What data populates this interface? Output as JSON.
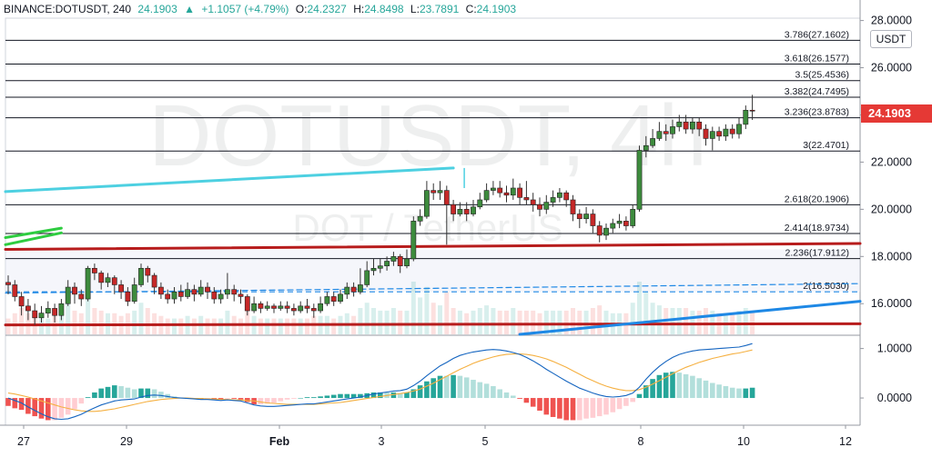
{
  "header": {
    "symbol": "BINANCE:DOTUSDT, 240",
    "last": "24.1903",
    "change": "+1.1057 (+4.79%)",
    "open_label": "O:",
    "open": "24.2327",
    "high_label": "H:",
    "high": "24.8498",
    "low_label": "L:",
    "low": "23.7891",
    "close_label": "C:",
    "close": "24.1903"
  },
  "unit": "USDT",
  "price_tag": "24.1903",
  "watermark": {
    "ticker": "DOTUSDT, 4h",
    "pair": "DOT / TetherUS"
  },
  "colors": {
    "up": "#26a69a",
    "down": "#ef5350",
    "candle_up": "#3d8b3d",
    "candle_down": "#c62828",
    "fib": "#131722",
    "cyan_line": "#4dd0e1",
    "green_line": "#2ecc40",
    "red_line": "#b71c1c",
    "blue_line": "#1e88e5",
    "macd": "#1565c0",
    "signal": "#f5b041"
  },
  "chart_data": [
    {
      "type": "candlestick",
      "timeframe": "4h",
      "ylim": [
        14.7,
        28.1
      ],
      "y_ticks": [
        "28.0000",
        "26.0000",
        "24.0000",
        "22.0000",
        "20.0000",
        "18.0000",
        "16.0000"
      ],
      "x_ticks": [
        "27",
        "29",
        "Feb",
        "3",
        "5",
        "8",
        "10",
        "12"
      ],
      "fib_levels": [
        {
          "ratio": "3.786",
          "price": 27.1602,
          "label": "3.786(27.1602)"
        },
        {
          "ratio": "3.618",
          "price": 26.1577,
          "label": "3.618(26.1577)"
        },
        {
          "ratio": "3.5",
          "price": 25.4536,
          "label": "3.5(25.4536)"
        },
        {
          "ratio": "3.382",
          "price": 24.7495,
          "label": "3.382(24.7495)"
        },
        {
          "ratio": "3.236",
          "price": 23.8783,
          "label": "3.236(23.8783)"
        },
        {
          "ratio": "3",
          "price": 22.4701,
          "label": "3(22.4701)"
        },
        {
          "ratio": "2.618",
          "price": 20.1906,
          "label": "2.618(20.1906)"
        },
        {
          "ratio": "2.414",
          "price": 18.9734,
          "label": "2.414(18.9734)"
        },
        {
          "ratio": "2.236",
          "price": 17.9112,
          "label": "2.236(17.9112)"
        },
        {
          "ratio": "2",
          "price": 16.503,
          "label": "2(16.5030)"
        }
      ],
      "candles": [
        [
          16.9,
          16.8,
          17.2,
          16.4
        ],
        [
          16.8,
          16.3,
          17.0,
          16.1
        ],
        [
          16.3,
          15.9,
          16.5,
          15.5
        ],
        [
          15.9,
          15.7,
          16.2,
          15.3
        ],
        [
          15.7,
          15.4,
          16.0,
          15.1
        ],
        [
          15.4,
          15.6,
          15.9,
          15.2
        ],
        [
          15.6,
          15.8,
          16.1,
          15.4
        ],
        [
          15.8,
          15.5,
          16.0,
          15.2
        ],
        [
          15.5,
          16.0,
          16.2,
          15.3
        ],
        [
          16.0,
          16.7,
          17.0,
          15.9
        ],
        [
          16.7,
          16.4,
          16.9,
          16.0
        ],
        [
          16.4,
          16.2,
          16.6,
          15.9
        ],
        [
          16.2,
          17.5,
          17.6,
          16.1
        ],
        [
          17.5,
          17.3,
          17.7,
          17.0
        ],
        [
          17.3,
          16.9,
          17.4,
          16.6
        ],
        [
          16.9,
          17.1,
          17.3,
          16.7
        ],
        [
          17.1,
          16.8,
          17.2,
          16.4
        ],
        [
          16.8,
          16.5,
          17.0,
          16.2
        ],
        [
          16.5,
          16.1,
          16.7,
          15.9
        ],
        [
          16.1,
          16.8,
          17.1,
          16.0
        ],
        [
          16.8,
          17.5,
          17.7,
          16.7
        ],
        [
          17.5,
          17.2,
          17.6,
          16.9
        ],
        [
          17.2,
          16.7,
          17.3,
          16.4
        ],
        [
          16.7,
          16.4,
          16.9,
          16.2
        ],
        [
          16.4,
          16.2,
          16.6,
          16.0
        ],
        [
          16.2,
          16.5,
          16.7,
          16.0
        ],
        [
          16.5,
          16.3,
          16.8,
          16.1
        ],
        [
          16.3,
          16.6,
          16.9,
          16.2
        ],
        [
          16.6,
          16.4,
          16.8,
          16.1
        ],
        [
          16.4,
          16.7,
          17.0,
          16.3
        ],
        [
          16.7,
          16.5,
          16.9,
          16.2
        ],
        [
          16.5,
          16.2,
          16.7,
          16.0
        ],
        [
          16.2,
          16.4,
          16.6,
          16.0
        ],
        [
          16.4,
          16.6,
          17.3,
          16.2
        ],
        [
          16.6,
          16.4,
          16.8,
          16.1
        ],
        [
          16.4,
          16.3,
          16.6,
          16.0
        ],
        [
          16.3,
          15.7,
          16.4,
          15.5
        ],
        [
          15.7,
          16.0,
          16.3,
          15.6
        ],
        [
          16.0,
          15.8,
          16.1,
          15.6
        ],
        [
          15.8,
          15.9,
          16.1,
          15.7
        ],
        [
          15.9,
          15.8,
          16.0,
          15.6
        ],
        [
          15.8,
          15.9,
          16.1,
          15.7
        ],
        [
          15.9,
          15.8,
          16.1,
          15.6
        ],
        [
          15.8,
          15.7,
          16.0,
          15.5
        ],
        [
          15.7,
          15.9,
          16.1,
          15.6
        ],
        [
          15.9,
          15.8,
          16.2,
          15.6
        ],
        [
          15.8,
          15.7,
          16.0,
          15.4
        ],
        [
          15.7,
          16.0,
          16.3,
          15.6
        ],
        [
          16.0,
          16.3,
          16.5,
          15.9
        ],
        [
          16.3,
          16.1,
          16.5,
          15.9
        ],
        [
          16.1,
          16.4,
          16.6,
          16.0
        ],
        [
          16.4,
          16.7,
          16.9,
          16.2
        ],
        [
          16.7,
          16.5,
          16.9,
          16.3
        ],
        [
          16.5,
          16.8,
          17.5,
          16.4
        ],
        [
          16.8,
          17.4,
          17.8,
          16.7
        ],
        [
          17.4,
          17.5,
          17.9,
          17.2
        ],
        [
          17.5,
          17.6,
          17.9,
          17.3
        ],
        [
          17.6,
          17.8,
          18.0,
          17.4
        ],
        [
          17.8,
          18.0,
          18.2,
          17.6
        ],
        [
          18.0,
          17.6,
          18.1,
          17.3
        ],
        [
          17.6,
          17.9,
          18.3,
          17.5
        ],
        [
          17.9,
          19.5,
          19.7,
          17.8
        ],
        [
          19.5,
          19.7,
          20.0,
          19.3
        ],
        [
          19.7,
          20.8,
          21.2,
          19.6
        ],
        [
          20.8,
          20.7,
          21.1,
          20.4
        ],
        [
          20.7,
          20.8,
          21.2,
          20.4
        ],
        [
          20.8,
          20.2,
          21.0,
          18.5
        ],
        [
          20.2,
          19.8,
          20.4,
          19.5
        ],
        [
          19.8,
          20.0,
          20.3,
          19.7
        ],
        [
          20.0,
          19.8,
          20.3,
          19.5
        ],
        [
          19.8,
          20.1,
          20.4,
          19.7
        ],
        [
          20.1,
          20.4,
          20.7,
          20.0
        ],
        [
          20.4,
          20.8,
          21.1,
          20.3
        ],
        [
          20.8,
          20.9,
          21.2,
          20.6
        ],
        [
          20.9,
          20.7,
          21.2,
          20.5
        ],
        [
          20.7,
          20.6,
          21.0,
          20.3
        ],
        [
          20.6,
          20.9,
          21.3,
          20.4
        ],
        [
          20.9,
          20.5,
          21.1,
          20.2
        ],
        [
          20.5,
          20.4,
          21.2,
          20.2
        ],
        [
          20.4,
          20.2,
          20.7,
          19.9
        ],
        [
          20.2,
          20.0,
          20.5,
          19.7
        ],
        [
          20.0,
          20.3,
          20.6,
          19.8
        ],
        [
          20.3,
          20.5,
          20.8,
          20.1
        ],
        [
          20.5,
          20.7,
          20.9,
          20.3
        ],
        [
          20.7,
          20.4,
          20.8,
          20.1
        ],
        [
          20.4,
          19.8,
          20.6,
          19.5
        ],
        [
          19.8,
          19.6,
          20.0,
          19.2
        ],
        [
          19.6,
          19.8,
          20.1,
          19.4
        ],
        [
          19.8,
          19.3,
          20.0,
          19.0
        ],
        [
          19.3,
          18.9,
          19.5,
          18.6
        ],
        [
          18.9,
          19.2,
          19.4,
          18.7
        ],
        [
          19.2,
          19.4,
          19.6,
          19.0
        ],
        [
          19.4,
          19.5,
          19.8,
          19.2
        ],
        [
          19.5,
          19.3,
          19.7,
          19.1
        ],
        [
          19.3,
          20.0,
          20.2,
          19.2
        ],
        [
          20.0,
          22.5,
          22.7,
          19.9
        ],
        [
          22.5,
          22.7,
          23.1,
          22.2
        ],
        [
          22.7,
          23.0,
          23.4,
          22.6
        ],
        [
          23.0,
          23.3,
          23.7,
          22.9
        ],
        [
          23.3,
          23.2,
          23.6,
          22.9
        ],
        [
          23.2,
          23.5,
          23.8,
          23.0
        ],
        [
          23.5,
          23.7,
          24.0,
          23.3
        ],
        [
          23.7,
          23.4,
          24.0,
          23.2
        ],
        [
          23.4,
          23.7,
          23.9,
          23.2
        ],
        [
          23.7,
          23.4,
          23.9,
          23.1
        ],
        [
          23.4,
          23.0,
          23.6,
          22.7
        ],
        [
          23.0,
          23.3,
          23.5,
          22.5
        ],
        [
          23.3,
          23.1,
          23.5,
          22.9
        ],
        [
          23.1,
          23.4,
          23.6,
          22.9
        ],
        [
          23.4,
          23.2,
          23.6,
          23.0
        ],
        [
          23.2,
          23.6,
          23.9,
          23.0
        ],
        [
          23.6,
          24.2,
          24.4,
          23.4
        ],
        [
          24.2,
          24.19,
          24.85,
          23.79
        ]
      ],
      "volume": [
        0.3,
        0.4,
        0.5,
        0.4,
        0.35,
        0.3,
        0.3,
        0.35,
        0.4,
        0.6,
        0.45,
        0.4,
        0.7,
        0.5,
        0.45,
        0.4,
        0.4,
        0.35,
        0.4,
        0.45,
        0.6,
        0.5,
        0.4,
        0.35,
        0.3,
        0.3,
        0.3,
        0.35,
        0.3,
        0.35,
        0.3,
        0.3,
        0.3,
        0.45,
        0.35,
        0.3,
        0.5,
        0.35,
        0.3,
        0.3,
        0.3,
        0.3,
        0.3,
        0.3,
        0.3,
        0.3,
        0.35,
        0.35,
        0.35,
        0.3,
        0.35,
        0.4,
        0.35,
        0.5,
        0.6,
        0.5,
        0.45,
        0.45,
        0.5,
        0.45,
        0.45,
        1.0,
        0.7,
        0.9,
        0.6,
        0.55,
        0.8,
        0.5,
        0.45,
        0.4,
        0.45,
        0.5,
        0.55,
        0.5,
        0.45,
        0.45,
        0.5,
        0.45,
        0.45,
        0.45,
        0.4,
        0.45,
        0.45,
        0.45,
        0.45,
        0.5,
        0.45,
        0.45,
        0.5,
        0.55,
        0.45,
        0.4,
        0.4,
        0.4,
        0.6,
        1.0,
        0.8,
        0.6,
        0.55,
        0.5,
        0.5,
        0.5,
        0.5,
        0.45,
        0.45,
        0.5,
        0.45,
        0.4,
        0.4,
        0.4,
        0.45,
        0.5,
        0.45
      ],
      "overlay_lines": [
        {
          "name": "cyan_trend",
          "points": [
            [
              0,
              20.75
            ],
            [
              67,
              21.75
            ]
          ]
        },
        {
          "name": "red_support_upper",
          "points": [
            [
              0,
              18.3
            ],
            [
              112,
              18.55
            ]
          ]
        },
        {
          "name": "red_support_lower",
          "points": [
            [
              0,
              15.1
            ],
            [
              112,
              15.15
            ]
          ]
        },
        {
          "name": "blue_trend",
          "points": [
            [
              77,
              14.7
            ],
            [
              112,
              16.1
            ]
          ]
        },
        {
          "name": "green_a",
          "points": [
            [
              0,
              18.8
            ],
            [
              8,
              19.2
            ]
          ]
        },
        {
          "name": "green_b",
          "points": [
            [
              0,
              18.5
            ],
            [
              8,
              19.0
            ]
          ]
        },
        {
          "name": "dashed_blue",
          "points": [
            [
              0,
              16.45
            ],
            [
              112,
              16.85
            ]
          ]
        }
      ]
    },
    {
      "type": "macd",
      "ylim": [
        -0.55,
        1.25
      ],
      "y_ticks": [
        "1.0000",
        "0.0000"
      ],
      "macd": [
        0.0,
        -0.05,
        -0.1,
        -0.18,
        -0.25,
        -0.32,
        -0.38,
        -0.42,
        -0.43,
        -0.42,
        -0.38,
        -0.33,
        -0.26,
        -0.2,
        -0.14,
        -0.1,
        -0.06,
        -0.04,
        -0.03,
        -0.02,
        0.02,
        0.05,
        0.06,
        0.05,
        0.03,
        0.01,
        0.0,
        -0.01,
        -0.02,
        -0.03,
        -0.03,
        -0.04,
        -0.05,
        -0.04,
        -0.05,
        -0.06,
        -0.1,
        -0.14,
        -0.16,
        -0.17,
        -0.17,
        -0.16,
        -0.15,
        -0.14,
        -0.13,
        -0.12,
        -0.12,
        -0.1,
        -0.08,
        -0.06,
        -0.04,
        -0.02,
        0.0,
        0.02,
        0.05,
        0.08,
        0.1,
        0.12,
        0.14,
        0.15,
        0.18,
        0.25,
        0.34,
        0.45,
        0.55,
        0.65,
        0.72,
        0.8,
        0.86,
        0.9,
        0.93,
        0.95,
        0.97,
        0.98,
        0.97,
        0.95,
        0.92,
        0.88,
        0.82,
        0.75,
        0.67,
        0.58,
        0.5,
        0.42,
        0.34,
        0.27,
        0.2,
        0.15,
        0.1,
        0.06,
        0.03,
        0.02,
        0.03,
        0.05,
        0.1,
        0.22,
        0.38,
        0.52,
        0.64,
        0.74,
        0.82,
        0.88,
        0.92,
        0.95,
        0.97,
        0.98,
        0.99,
        1.0,
        1.01,
        1.02,
        1.03,
        1.06,
        1.1
      ],
      "signal": [
        0.1,
        0.08,
        0.05,
        0.02,
        -0.02,
        -0.06,
        -0.1,
        -0.14,
        -0.18,
        -0.21,
        -0.24,
        -0.26,
        -0.27,
        -0.27,
        -0.26,
        -0.24,
        -0.22,
        -0.19,
        -0.16,
        -0.13,
        -0.1,
        -0.07,
        -0.05,
        -0.03,
        -0.02,
        -0.01,
        0.0,
        0.0,
        -0.01,
        -0.01,
        -0.02,
        -0.02,
        -0.03,
        -0.03,
        -0.04,
        -0.04,
        -0.05,
        -0.06,
        -0.08,
        -0.1,
        -0.11,
        -0.12,
        -0.13,
        -0.13,
        -0.13,
        -0.13,
        -0.13,
        -0.12,
        -0.11,
        -0.1,
        -0.09,
        -0.07,
        -0.05,
        -0.03,
        -0.01,
        0.01,
        0.03,
        0.05,
        0.07,
        0.09,
        0.11,
        0.14,
        0.18,
        0.24,
        0.3,
        0.37,
        0.44,
        0.51,
        0.58,
        0.64,
        0.7,
        0.75,
        0.79,
        0.83,
        0.86,
        0.88,
        0.89,
        0.89,
        0.88,
        0.86,
        0.83,
        0.79,
        0.74,
        0.68,
        0.62,
        0.55,
        0.48,
        0.41,
        0.35,
        0.29,
        0.24,
        0.2,
        0.17,
        0.15,
        0.15,
        0.17,
        0.22,
        0.28,
        0.35,
        0.42,
        0.49,
        0.56,
        0.62,
        0.67,
        0.72,
        0.76,
        0.8,
        0.83,
        0.86,
        0.89,
        0.91,
        0.94,
        0.97
      ]
    }
  ]
}
